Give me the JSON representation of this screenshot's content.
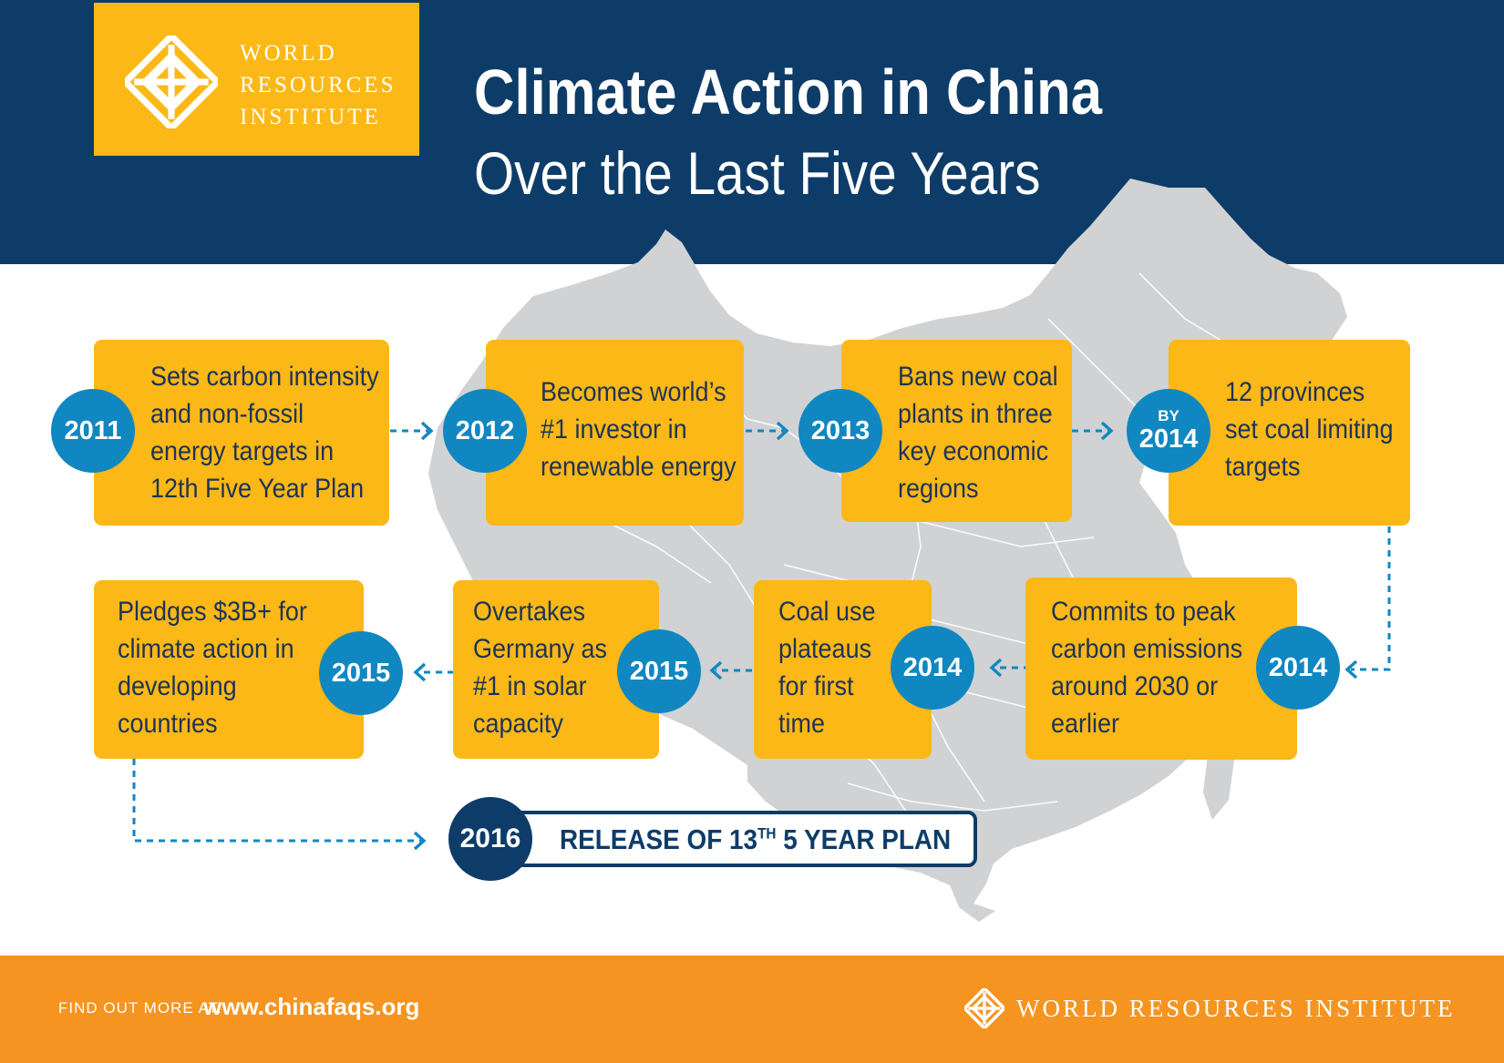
{
  "org": {
    "logo_lines": [
      "WORLD",
      "RESOURCES",
      "INSTITUTE"
    ],
    "footer_name": "WORLD RESOURCES INSTITUTE"
  },
  "header": {
    "title": "Climate Action in China",
    "subtitle": "Over the Last Five Years"
  },
  "timeline": [
    {
      "year": "2011",
      "lines": [
        "Sets carbon intensity",
        "and non-fossil",
        "energy targets in",
        "12th Five Year Plan"
      ]
    },
    {
      "year": "2012",
      "lines": [
        "Becomes world’s",
        "#1 investor in",
        "renewable energy"
      ]
    },
    {
      "year": "2013",
      "lines": [
        "Bans new coal",
        "plants in three",
        "key economic",
        "regions"
      ]
    },
    {
      "prefix": "BY",
      "year": "2014",
      "lines": [
        "12 provinces",
        "set coal limiting",
        "targets"
      ]
    },
    {
      "year": "2014",
      "lines": [
        "Commits to peak",
        "carbon emissions",
        "around 2030 or",
        "earlier"
      ]
    },
    {
      "year": "2014",
      "lines": [
        "Coal use",
        "plateaus",
        "for first",
        "time"
      ]
    },
    {
      "year": "2015",
      "lines": [
        "Overtakes",
        "Germany as",
        "#1 in solar",
        "capacity"
      ]
    },
    {
      "year": "2015",
      "lines": [
        "Pledges $3B+ for",
        "climate action in",
        "developing",
        "countries"
      ]
    }
  ],
  "plan": {
    "year": "2016",
    "label_before": "RELEASE OF 13",
    "label_sup": "TH",
    "label_after": " 5 YEAR PLAN"
  },
  "footer": {
    "prefix": "FIND OUT MORE AT:",
    "url": "www.chinafaqs.org"
  },
  "colors": {
    "navy": "#0e3c68",
    "gold": "#fbb816",
    "blue": "#1087c1",
    "orange": "#f59420",
    "map_gray": "#d1d2d4"
  }
}
